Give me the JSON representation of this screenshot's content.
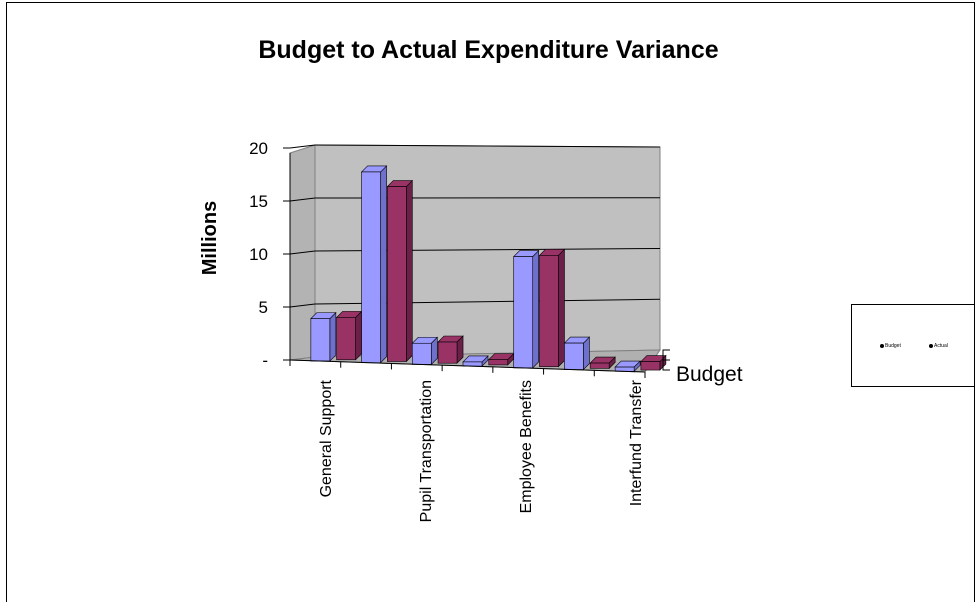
{
  "chart_data": {
    "type": "bar",
    "title": "Budget to Actual Expenditure Variance",
    "ylabel": "Millions",
    "xlabel": "",
    "depth_axis_label": "Budget",
    "ylim": [
      0,
      20
    ],
    "ytick_labels": [
      "-",
      "5",
      "10",
      "15",
      "20"
    ],
    "categories": [
      "General Support",
      "",
      "Pupil Transportation",
      "",
      "Employee Benefits",
      "",
      "Interfund Transfer"
    ],
    "x_tick_labels": [
      "General Support",
      "Pupil Transportation",
      "Employee Benefits",
      "Interfund Transfer"
    ],
    "series": [
      {
        "name": "Budget",
        "color": "#9999ff",
        "values": [
          4,
          18,
          2,
          0.4,
          10.5,
          2.5,
          0.4
        ]
      },
      {
        "name": "Actual",
        "color": "#993366",
        "values": [
          4,
          16.5,
          2,
          0.5,
          10.5,
          0.5,
          0.8
        ]
      }
    ],
    "legend": {
      "entries": [
        "Budget",
        "Actual"
      ],
      "position": "right"
    },
    "grid": true
  }
}
